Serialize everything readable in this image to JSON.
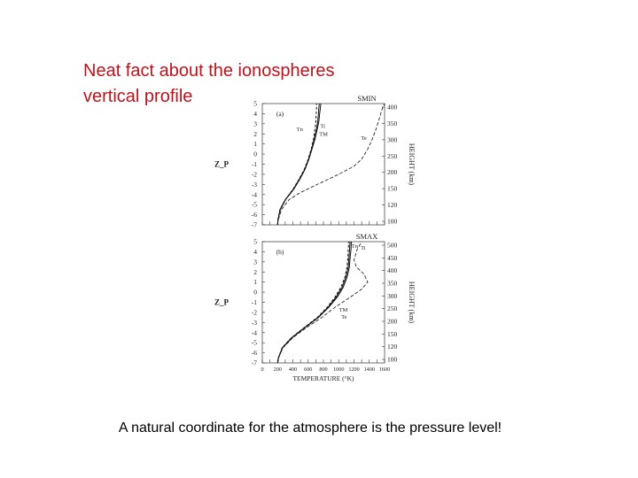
{
  "slide": {
    "title_line1": "Neat fact about the ionospheres",
    "title_line2": "vertical profile",
    "caption": "A natural coordinate for the atmosphere is the pressure level!",
    "title_color": "#c0121b"
  },
  "chart_data": [
    {
      "type": "line",
      "panel_label": "(a)",
      "title": "SMIN",
      "ylabel_left": "Z_P",
      "ylabel_right": "HEIGHT (km)",
      "zp_ticks": [
        5,
        4,
        3,
        2,
        1,
        0,
        -1,
        -2,
        -3,
        -4,
        -5,
        -6,
        -7
      ],
      "height_ticks": [
        400,
        350,
        300,
        250,
        200,
        150,
        120,
        100
      ],
      "xlim": [
        0,
        1600
      ],
      "ylim": [
        -7,
        5
      ],
      "series": [
        {
          "name": "T_n",
          "x": [
            200,
            205,
            230,
            300,
            400,
            480,
            550,
            600,
            640,
            670,
            690,
            700,
            705,
            710,
            710
          ],
          "y": [
            -7,
            -6.5,
            -5.5,
            -4.5,
            -3.5,
            -2.5,
            -1.5,
            -0.5,
            0.5,
            1.5,
            2.5,
            3.2,
            4,
            4.5,
            5
          ]
        },
        {
          "name": "T_i",
          "x": [
            200,
            205,
            235,
            305,
            410,
            490,
            560,
            610,
            650,
            690,
            720,
            740,
            750,
            760,
            765
          ],
          "y": [
            -7,
            -6.5,
            -5.5,
            -4.5,
            -3.5,
            -2.5,
            -1.5,
            -0.5,
            0.5,
            1.5,
            2.5,
            3.2,
            4,
            4.5,
            5
          ]
        },
        {
          "name": "T_M",
          "x": [
            200,
            205,
            232,
            302,
            405,
            485,
            555,
            605,
            645,
            680,
            710,
            725,
            735,
            740,
            745
          ],
          "y": [
            -7,
            -6.5,
            -5.5,
            -4.5,
            -3.5,
            -2.5,
            -1.5,
            -0.5,
            0.5,
            1.5,
            2.5,
            3.2,
            4,
            4.5,
            5
          ]
        },
        {
          "name": "T_e",
          "x": [
            200,
            210,
            250,
            350,
            500,
            720,
            1000,
            1200,
            1300,
            1380,
            1440,
            1490,
            1530,
            1570,
            1600
          ],
          "y": [
            -7,
            -6.5,
            -5.5,
            -4.5,
            -3.8,
            -3.0,
            -2.0,
            -1.2,
            -0.5,
            0.5,
            1.5,
            2.5,
            3.5,
            4.5,
            5
          ]
        }
      ]
    },
    {
      "type": "line",
      "panel_label": "(b)",
      "title": "SMAX",
      "ylabel_left": "Z_P",
      "ylabel_right": "HEIGHT (km)",
      "zp_ticks": [
        5,
        4,
        3,
        2,
        1,
        0,
        -1,
        -2,
        -3,
        -4,
        -5,
        -6,
        -7
      ],
      "height_ticks": [
        500,
        450,
        400,
        350,
        300,
        250,
        200,
        150,
        120,
        100
      ],
      "xlabel": "TEMPERATURE (°K)",
      "xticks": [
        0,
        200,
        400,
        600,
        800,
        1000,
        1200,
        1400,
        1600
      ],
      "xtick_labels": [
        "0",
        "200",
        "400",
        "600",
        "800",
        "1000",
        "1200",
        "1400",
        "1600"
      ],
      "xlim": [
        0,
        1600
      ],
      "ylim": [
        -7,
        5
      ],
      "series": [
        {
          "name": "T_n",
          "x": [
            200,
            210,
            260,
            380,
            550,
            720,
            850,
            950,
            1030,
            1080,
            1110,
            1120,
            1125,
            1130
          ],
          "y": [
            -7,
            -6.5,
            -5.5,
            -4.5,
            -3.5,
            -2.5,
            -1.5,
            -0.5,
            0.5,
            1.5,
            2.5,
            3.5,
            4.2,
            5
          ]
        },
        {
          "name": "T_i",
          "x": [
            200,
            212,
            265,
            390,
            560,
            735,
            870,
            980,
            1060,
            1110,
            1140,
            1150,
            1160,
            1165
          ],
          "y": [
            -7,
            -6.5,
            -5.5,
            -4.5,
            -3.5,
            -2.5,
            -1.5,
            -0.5,
            0.5,
            1.5,
            2.5,
            3.5,
            4.2,
            5
          ]
        },
        {
          "name": "T_M",
          "x": [
            200,
            211,
            262,
            385,
            555,
            728,
            860,
            965,
            1045,
            1095,
            1125,
            1135,
            1142,
            1148
          ],
          "y": [
            -7,
            -6.5,
            -5.5,
            -4.5,
            -3.5,
            -2.5,
            -1.5,
            -0.5,
            0.5,
            1.5,
            2.5,
            3.5,
            4.2,
            5
          ]
        },
        {
          "name": "T_e",
          "x": [
            200,
            212,
            270,
            400,
            580,
            780,
            950,
            1150,
            1300,
            1380,
            1330,
            1230,
            1200,
            1240,
            1300
          ],
          "y": [
            -7,
            -6.5,
            -5.5,
            -4.5,
            -3.5,
            -2.5,
            -1.5,
            -0.5,
            0.3,
            1.0,
            1.8,
            2.5,
            3.2,
            4.2,
            5
          ]
        }
      ]
    }
  ]
}
